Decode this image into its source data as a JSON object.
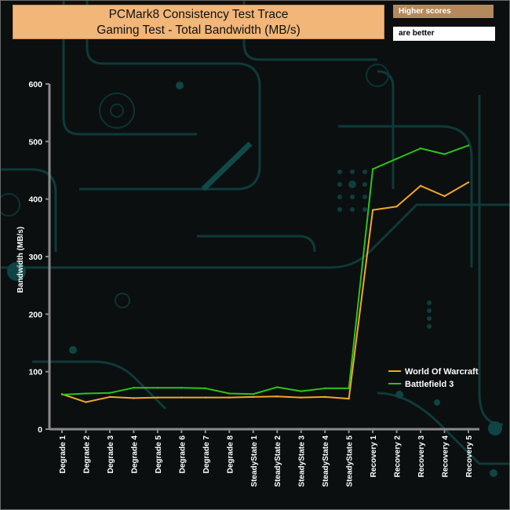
{
  "header": {
    "title_line1": "PCMark8 Consistency Test Trace",
    "title_line2": "Gaming Test - Total Bandwidth (MB/s)",
    "note_top": "Higher scores",
    "note_bottom": "are better"
  },
  "colors": {
    "axis": "#8a8a8a",
    "background": "#0b0f10",
    "circuit": "#0f3a3a"
  },
  "chart_data": {
    "type": "line",
    "title": "PCMark8 Consistency Test Trace Gaming Test - Total Bandwidth (MB/s)",
    "ylabel": "Bandwidth (MB/s)",
    "xlabel": "",
    "ylim": [
      0,
      600
    ],
    "yticks": [
      "0",
      "100",
      "200",
      "300",
      "400",
      "500",
      "600"
    ],
    "grid": false,
    "legend": "lower-right",
    "categories": [
      "Degrade 1",
      "Degrade 2",
      "Degrade 3",
      "Degrade 4",
      "Degrade 5",
      "Degrade 6",
      "Degrade 7",
      "Degrade 8",
      "SteadyState 1",
      "SteadyState 2",
      "SteadyState 3",
      "SteadyState 4",
      "SteadyState 5",
      "Recovery 1",
      "Recovery 2",
      "Recovery 3",
      "Recovery 4",
      "Recovery 5"
    ],
    "series": [
      {
        "name": "World Of Warcraft",
        "color": "#f5a623",
        "values": [
          61,
          47,
          56,
          54,
          55,
          55,
          55,
          55,
          56,
          57,
          55,
          56,
          53,
          381,
          387,
          423,
          405,
          429
        ]
      },
      {
        "name": "Battlefield 3",
        "color": "#2ec219",
        "values": [
          60,
          62,
          63,
          72,
          72,
          72,
          71,
          62,
          61,
          73,
          66,
          71,
          71,
          452,
          470,
          488,
          478,
          493
        ]
      }
    ]
  }
}
